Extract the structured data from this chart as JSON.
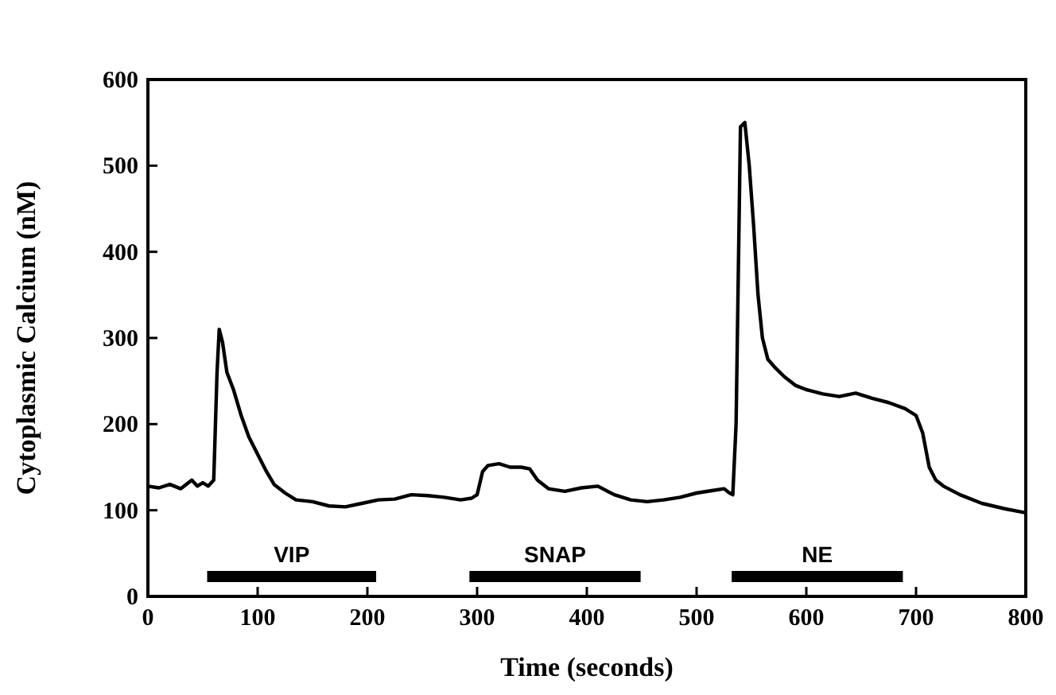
{
  "chart_data": {
    "type": "line",
    "xlabel": "Time (seconds)",
    "ylabel": "Cytoplasmic Calcium (nM)",
    "x": [
      0,
      10,
      20,
      30,
      40,
      45,
      50,
      55,
      60,
      63,
      65,
      68,
      72,
      78,
      85,
      92,
      100,
      108,
      115,
      125,
      135,
      150,
      165,
      180,
      195,
      210,
      225,
      240,
      255,
      270,
      285,
      295,
      300,
      305,
      310,
      320,
      330,
      340,
      348,
      355,
      365,
      380,
      395,
      410,
      425,
      440,
      455,
      470,
      485,
      500,
      515,
      525,
      530,
      533,
      536,
      540,
      544,
      548,
      552,
      556,
      560,
      565,
      572,
      580,
      590,
      600,
      615,
      630,
      645,
      660,
      675,
      690,
      700,
      706,
      712,
      718,
      725,
      740,
      760,
      780,
      800
    ],
    "series": [
      {
        "color": "#000000",
        "values": [
          128,
          126,
          130,
          125,
          135,
          128,
          132,
          128,
          135,
          260,
          310,
          295,
          260,
          240,
          210,
          185,
          165,
          145,
          130,
          120,
          112,
          110,
          105,
          104,
          108,
          112,
          113,
          118,
          117,
          115,
          112,
          114,
          118,
          145,
          152,
          154,
          150,
          150,
          148,
          135,
          125,
          122,
          126,
          128,
          118,
          112,
          110,
          112,
          115,
          120,
          123,
          125,
          120,
          118,
          200,
          545,
          550,
          500,
          430,
          350,
          300,
          275,
          265,
          255,
          245,
          240,
          235,
          232,
          236,
          230,
          225,
          218,
          210,
          190,
          150,
          135,
          128,
          118,
          108,
          102,
          97
        ]
      },
      {
        "name": "VIP",
        "color": "#000000",
        "x": [
          54,
          208
        ],
        "values": [
          23,
          23
        ]
      },
      {
        "name": "SNAP",
        "color": "#000000",
        "x": [
          293,
          449
        ],
        "values": [
          23,
          23
        ]
      },
      {
        "name": "NE",
        "color": "#000000",
        "x": [
          532,
          688
        ],
        "values": [
          23,
          23
        ]
      }
    ],
    "xlim": [
      0,
      800
    ],
    "xticks": [
      0,
      100,
      200,
      300,
      400,
      500,
      600,
      700,
      800
    ],
    "ylim": [
      0,
      600
    ],
    "yticks": [
      0,
      100,
      200,
      300,
      400,
      500,
      600
    ],
    "grid": false,
    "marker": "none",
    "line_style": "solid"
  }
}
